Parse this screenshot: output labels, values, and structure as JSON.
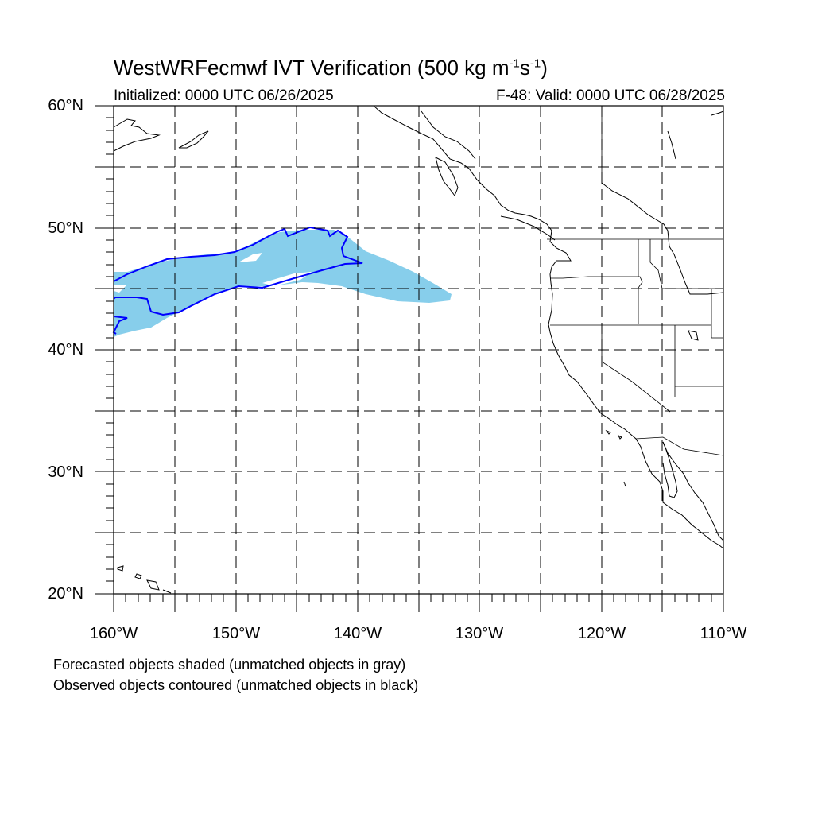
{
  "title": {
    "main": "WestWRFecmwf IVT Verification (500 kg m",
    "sup1": "-1",
    "mid": "s",
    "sup2": "-1",
    "end": ")"
  },
  "subtitle_left": "Initialized: 0000 UTC 06/26/2025",
  "subtitle_right": "F-48: Valid: 0000 UTC 06/28/2025",
  "lat_labels": [
    "60°N",
    "50°N",
    "40°N",
    "30°N",
    "20°N"
  ],
  "lon_labels": [
    "160°W",
    "150°W",
    "140°W",
    "130°W",
    "120°W",
    "110°W"
  ],
  "notes": [
    "Forecasted objects shaded (unmatched objects in gray)",
    "Observed objects contoured (unmatched objects in black)"
  ],
  "colors": {
    "forecast_fill": "#87ceeb",
    "observed_contour": "#0000ff",
    "gridline": "#000000"
  },
  "map_extent": {
    "lon": [
      -160,
      -110
    ],
    "lat": [
      20,
      60
    ]
  }
}
